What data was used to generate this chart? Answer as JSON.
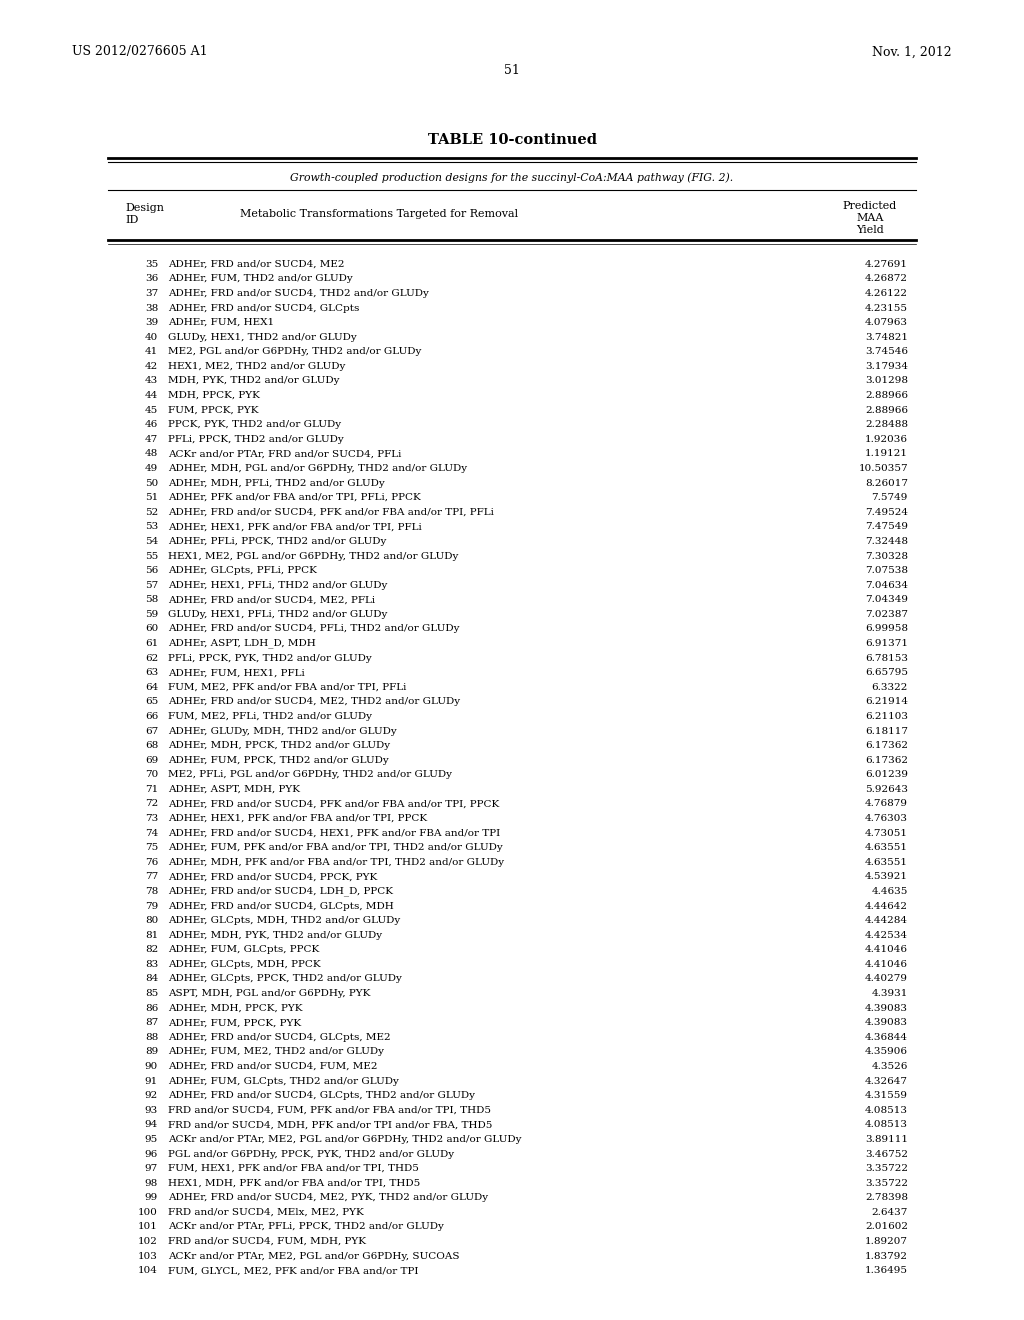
{
  "header_left": "US 2012/0276605 A1",
  "header_right": "Nov. 1, 2012",
  "page_number": "51",
  "table_title": "TABLE 10-continued",
  "table_subtitle": "Growth-coupled production designs for the succinyl-CoA:MAA pathway (FIG. 2).",
  "rows": [
    [
      "35",
      "ADHEr, FRD and/or SUCD4, ME2",
      "4.27691"
    ],
    [
      "36",
      "ADHEr, FUM, THD2 and/or GLUDy",
      "4.26872"
    ],
    [
      "37",
      "ADHEr, FRD and/or SUCD4, THD2 and/or GLUDy",
      "4.26122"
    ],
    [
      "38",
      "ADHEr, FRD and/or SUCD4, GLCpts",
      "4.23155"
    ],
    [
      "39",
      "ADHEr, FUM, HEX1",
      "4.07963"
    ],
    [
      "40",
      "GLUDy, HEX1, THD2 and/or GLUDy",
      "3.74821"
    ],
    [
      "41",
      "ME2, PGL and/or G6PDHy, THD2 and/or GLUDy",
      "3.74546"
    ],
    [
      "42",
      "HEX1, ME2, THD2 and/or GLUDy",
      "3.17934"
    ],
    [
      "43",
      "MDH, PYK, THD2 and/or GLUDy",
      "3.01298"
    ],
    [
      "44",
      "MDH, PPCK, PYK",
      "2.88966"
    ],
    [
      "45",
      "FUM, PPCK, PYK",
      "2.88966"
    ],
    [
      "46",
      "PPCK, PYK, THD2 and/or GLUDy",
      "2.28488"
    ],
    [
      "47",
      "PFLi, PPCK, THD2 and/or GLUDy",
      "1.92036"
    ],
    [
      "48",
      "ACKr and/or PTAr, FRD and/or SUCD4, PFLi",
      "1.19121"
    ],
    [
      "49",
      "ADHEr, MDH, PGL and/or G6PDHy, THD2 and/or GLUDy",
      "10.50357"
    ],
    [
      "50",
      "ADHEr, MDH, PFLi, THD2 and/or GLUDy",
      "8.26017"
    ],
    [
      "51",
      "ADHEr, PFK and/or FBA and/or TPI, PFLi, PPCK",
      "7.5749"
    ],
    [
      "52",
      "ADHEr, FRD and/or SUCD4, PFK and/or FBA and/or TPI, PFLi",
      "7.49524"
    ],
    [
      "53",
      "ADHEr, HEX1, PFK and/or FBA and/or TPI, PFLi",
      "7.47549"
    ],
    [
      "54",
      "ADHEr, PFLi, PPCK, THD2 and/or GLUDy",
      "7.32448"
    ],
    [
      "55",
      "HEX1, ME2, PGL and/or G6PDHy, THD2 and/or GLUDy",
      "7.30328"
    ],
    [
      "56",
      "ADHEr, GLCpts, PFLi, PPCK",
      "7.07538"
    ],
    [
      "57",
      "ADHEr, HEX1, PFLi, THD2 and/or GLUDy",
      "7.04634"
    ],
    [
      "58",
      "ADHEr, FRD and/or SUCD4, ME2, PFLi",
      "7.04349"
    ],
    [
      "59",
      "GLUDy, HEX1, PFLi, THD2 and/or GLUDy",
      "7.02387"
    ],
    [
      "60",
      "ADHEr, FRD and/or SUCD4, PFLi, THD2 and/or GLUDy",
      "6.99958"
    ],
    [
      "61",
      "ADHEr, ASPT, LDH_D, MDH",
      "6.91371"
    ],
    [
      "62",
      "PFLi, PPCK, PYK, THD2 and/or GLUDy",
      "6.78153"
    ],
    [
      "63",
      "ADHEr, FUM, HEX1, PFLi",
      "6.65795"
    ],
    [
      "64",
      "FUM, ME2, PFK and/or FBA and/or TPI, PFLi",
      "6.3322"
    ],
    [
      "65",
      "ADHEr, FRD and/or SUCD4, ME2, THD2 and/or GLUDy",
      "6.21914"
    ],
    [
      "66",
      "FUM, ME2, PFLi, THD2 and/or GLUDy",
      "6.21103"
    ],
    [
      "67",
      "ADHEr, GLUDy, MDH, THD2 and/or GLUDy",
      "6.18117"
    ],
    [
      "68",
      "ADHEr, MDH, PPCK, THD2 and/or GLUDy",
      "6.17362"
    ],
    [
      "69",
      "ADHEr, FUM, PPCK, THD2 and/or GLUDy",
      "6.17362"
    ],
    [
      "70",
      "ME2, PFLi, PGL and/or G6PDHy, THD2 and/or GLUDy",
      "6.01239"
    ],
    [
      "71",
      "ADHEr, ASPT, MDH, PYK",
      "5.92643"
    ],
    [
      "72",
      "ADHEr, FRD and/or SUCD4, PFK and/or FBA and/or TPI, PPCK",
      "4.76879"
    ],
    [
      "73",
      "ADHEr, HEX1, PFK and/or FBA and/or TPI, PPCK",
      "4.76303"
    ],
    [
      "74",
      "ADHEr, FRD and/or SUCD4, HEX1, PFK and/or FBA and/or TPI",
      "4.73051"
    ],
    [
      "75",
      "ADHEr, FUM, PFK and/or FBA and/or TPI, THD2 and/or GLUDy",
      "4.63551"
    ],
    [
      "76",
      "ADHEr, MDH, PFK and/or FBA and/or TPI, THD2 and/or GLUDy",
      "4.63551"
    ],
    [
      "77",
      "ADHEr, FRD and/or SUCD4, PPCK, PYK",
      "4.53921"
    ],
    [
      "78",
      "ADHEr, FRD and/or SUCD4, LDH_D, PPCK",
      "4.4635"
    ],
    [
      "79",
      "ADHEr, FRD and/or SUCD4, GLCpts, MDH",
      "4.44642"
    ],
    [
      "80",
      "ADHEr, GLCpts, MDH, THD2 and/or GLUDy",
      "4.44284"
    ],
    [
      "81",
      "ADHEr, MDH, PYK, THD2 and/or GLUDy",
      "4.42534"
    ],
    [
      "82",
      "ADHEr, FUM, GLCpts, PPCK",
      "4.41046"
    ],
    [
      "83",
      "ADHEr, GLCpts, MDH, PPCK",
      "4.41046"
    ],
    [
      "84",
      "ADHEr, GLCpts, PPCK, THD2 and/or GLUDy",
      "4.40279"
    ],
    [
      "85",
      "ASPT, MDH, PGL and/or G6PDHy, PYK",
      "4.3931"
    ],
    [
      "86",
      "ADHEr, MDH, PPCK, PYK",
      "4.39083"
    ],
    [
      "87",
      "ADHEr, FUM, PPCK, PYK",
      "4.39083"
    ],
    [
      "88",
      "ADHEr, FRD and/or SUCD4, GLCpts, ME2",
      "4.36844"
    ],
    [
      "89",
      "ADHEr, FUM, ME2, THD2 and/or GLUDy",
      "4.35906"
    ],
    [
      "90",
      "ADHEr, FRD and/or SUCD4, FUM, ME2",
      "4.3526"
    ],
    [
      "91",
      "ADHEr, FUM, GLCpts, THD2 and/or GLUDy",
      "4.32647"
    ],
    [
      "92",
      "ADHEr, FRD and/or SUCD4, GLCpts, THD2 and/or GLUDy",
      "4.31559"
    ],
    [
      "93",
      "FRD and/or SUCD4, FUM, PFK and/or FBA and/or TPI, THD5",
      "4.08513"
    ],
    [
      "94",
      "FRD and/or SUCD4, MDH, PFK and/or TPI and/or FBA, THD5",
      "4.08513"
    ],
    [
      "95",
      "ACKr and/or PTAr, ME2, PGL and/or G6PDHy, THD2 and/or GLUDy",
      "3.89111"
    ],
    [
      "96",
      "PGL and/or G6PDHy, PPCK, PYK, THD2 and/or GLUDy",
      "3.46752"
    ],
    [
      "97",
      "FUM, HEX1, PFK and/or FBA and/or TPI, THD5",
      "3.35722"
    ],
    [
      "98",
      "HEX1, MDH, PFK and/or FBA and/or TPI, THD5",
      "3.35722"
    ],
    [
      "99",
      "ADHEr, FRD and/or SUCD4, ME2, PYK, THD2 and/or GLUDy",
      "2.78398"
    ],
    [
      "100",
      "FRD and/or SUCD4, MElx, ME2, PYK",
      "2.6437"
    ],
    [
      "101",
      "ACKr and/or PTAr, PFLi, PPCK, THD2 and/or GLUDy",
      "2.01602"
    ],
    [
      "102",
      "FRD and/or SUCD4, FUM, MDH, PYK",
      "1.89207"
    ],
    [
      "103",
      "ACKr and/or PTAr, ME2, PGL and/or G6PDHy, SUCOAS",
      "1.83792"
    ],
    [
      "104",
      "FUM, GLYCL, ME2, PFK and/or FBA and/or TPI",
      "1.36495"
    ]
  ]
}
